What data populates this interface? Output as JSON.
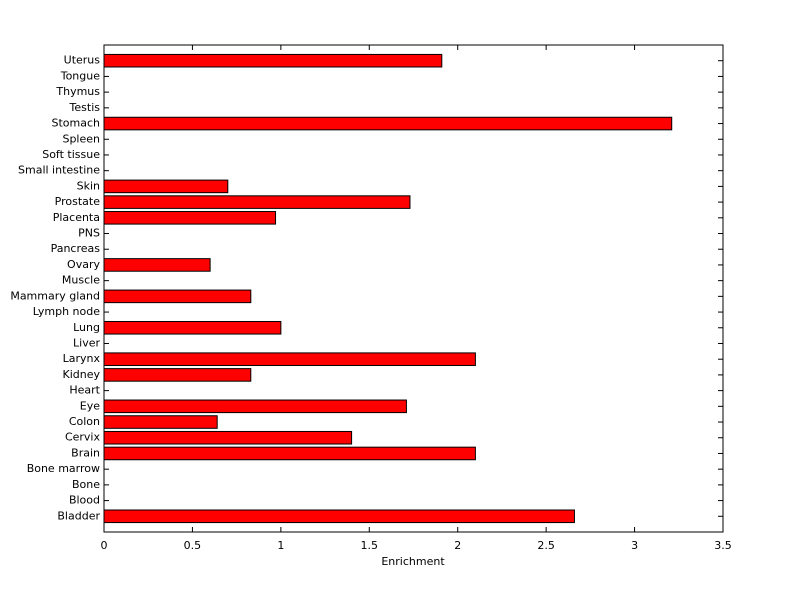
{
  "chart_data": {
    "type": "barh",
    "x_label": "Enrichment",
    "categories": [
      "Bladder",
      "Blood",
      "Bone",
      "Bone marrow",
      "Brain",
      "Cervix",
      "Colon",
      "Eye",
      "Heart",
      "Kidney",
      "Larynx",
      "Liver",
      "Lung",
      "Lymph node",
      "Mammary gland",
      "Muscle",
      "Ovary",
      "Pancreas",
      "PNS",
      "Placenta",
      "Prostate",
      "Skin",
      "Small intestine",
      "Soft tissue",
      "Spleen",
      "Stomach",
      "Testis",
      "Thymus",
      "Tongue",
      "Uterus"
    ],
    "values": [
      2.66,
      0,
      0,
      0,
      2.1,
      1.4,
      0.64,
      1.71,
      0,
      0.83,
      2.1,
      0,
      1.0,
      0,
      0.83,
      0,
      0.6,
      0,
      0,
      0.97,
      1.73,
      0.7,
      0,
      0,
      0,
      3.21,
      0,
      0,
      0,
      1.91
    ],
    "color": "#ff0000",
    "xlim": [
      0,
      3.5
    ],
    "xticks": [
      0,
      0.5,
      1,
      1.5,
      2,
      2.5,
      3,
      3.5
    ]
  }
}
